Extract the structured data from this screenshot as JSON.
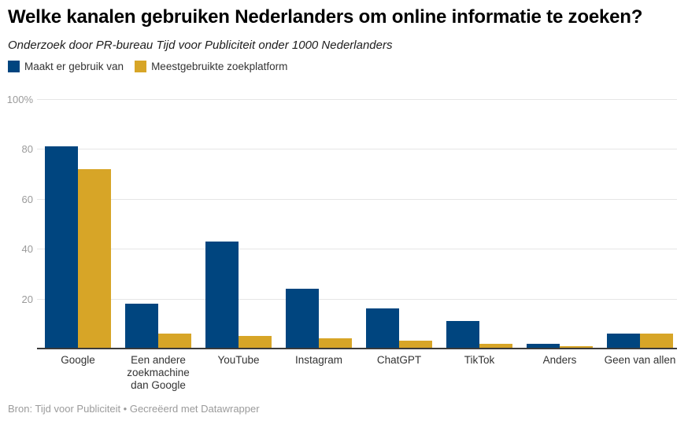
{
  "header": {
    "title": "Welke kanalen gebruiken Nederlanders om online informatie te zoeken?",
    "subtitle": "Onderzoek door PR-bureau Tijd voor Publiciteit onder 1000 Nederlanders"
  },
  "legend": {
    "items": [
      {
        "label": "Maakt er gebruik van",
        "color": "#00457f"
      },
      {
        "label": "Meestgebruikte zoekplatform",
        "color": "#d7a527"
      }
    ]
  },
  "chart_data": {
    "type": "bar",
    "title": "Welke kanalen gebruiken Nederlanders om online informatie te zoeken?",
    "subtitle": "Onderzoek door PR-bureau Tijd voor Publiciteit onder 1000 Nederlanders",
    "categories": [
      "Google",
      "Een andere zoekmachine dan Google",
      "YouTube",
      "Instagram",
      "ChatGPT",
      "TikTok",
      "Anders",
      "Geen van allen"
    ],
    "series": [
      {
        "name": "Maakt er gebruik van",
        "color": "#00457f",
        "values": [
          81,
          18,
          43,
          24,
          16,
          11,
          2,
          6
        ]
      },
      {
        "name": "Meestgebruikte zoekplatform",
        "color": "#d7a527",
        "values": [
          72,
          6,
          5,
          4,
          3,
          2,
          1,
          6
        ]
      }
    ],
    "unit": "%",
    "ylim": [
      0,
      100
    ],
    "yticks": [
      20,
      40,
      60,
      80,
      100
    ],
    "ytick_labels": [
      "20",
      "40",
      "60",
      "80",
      "100%"
    ],
    "grid": true,
    "legend_position": "top-left",
    "colors": {
      "grid": "#e6e6e6",
      "axis": "#3b3b3b",
      "tick_text": "#9b9b9b",
      "category_text": "#333333"
    }
  },
  "footer": {
    "source": "Bron: Tijd voor Publiciteit • Gecreëerd met Datawrapper"
  }
}
